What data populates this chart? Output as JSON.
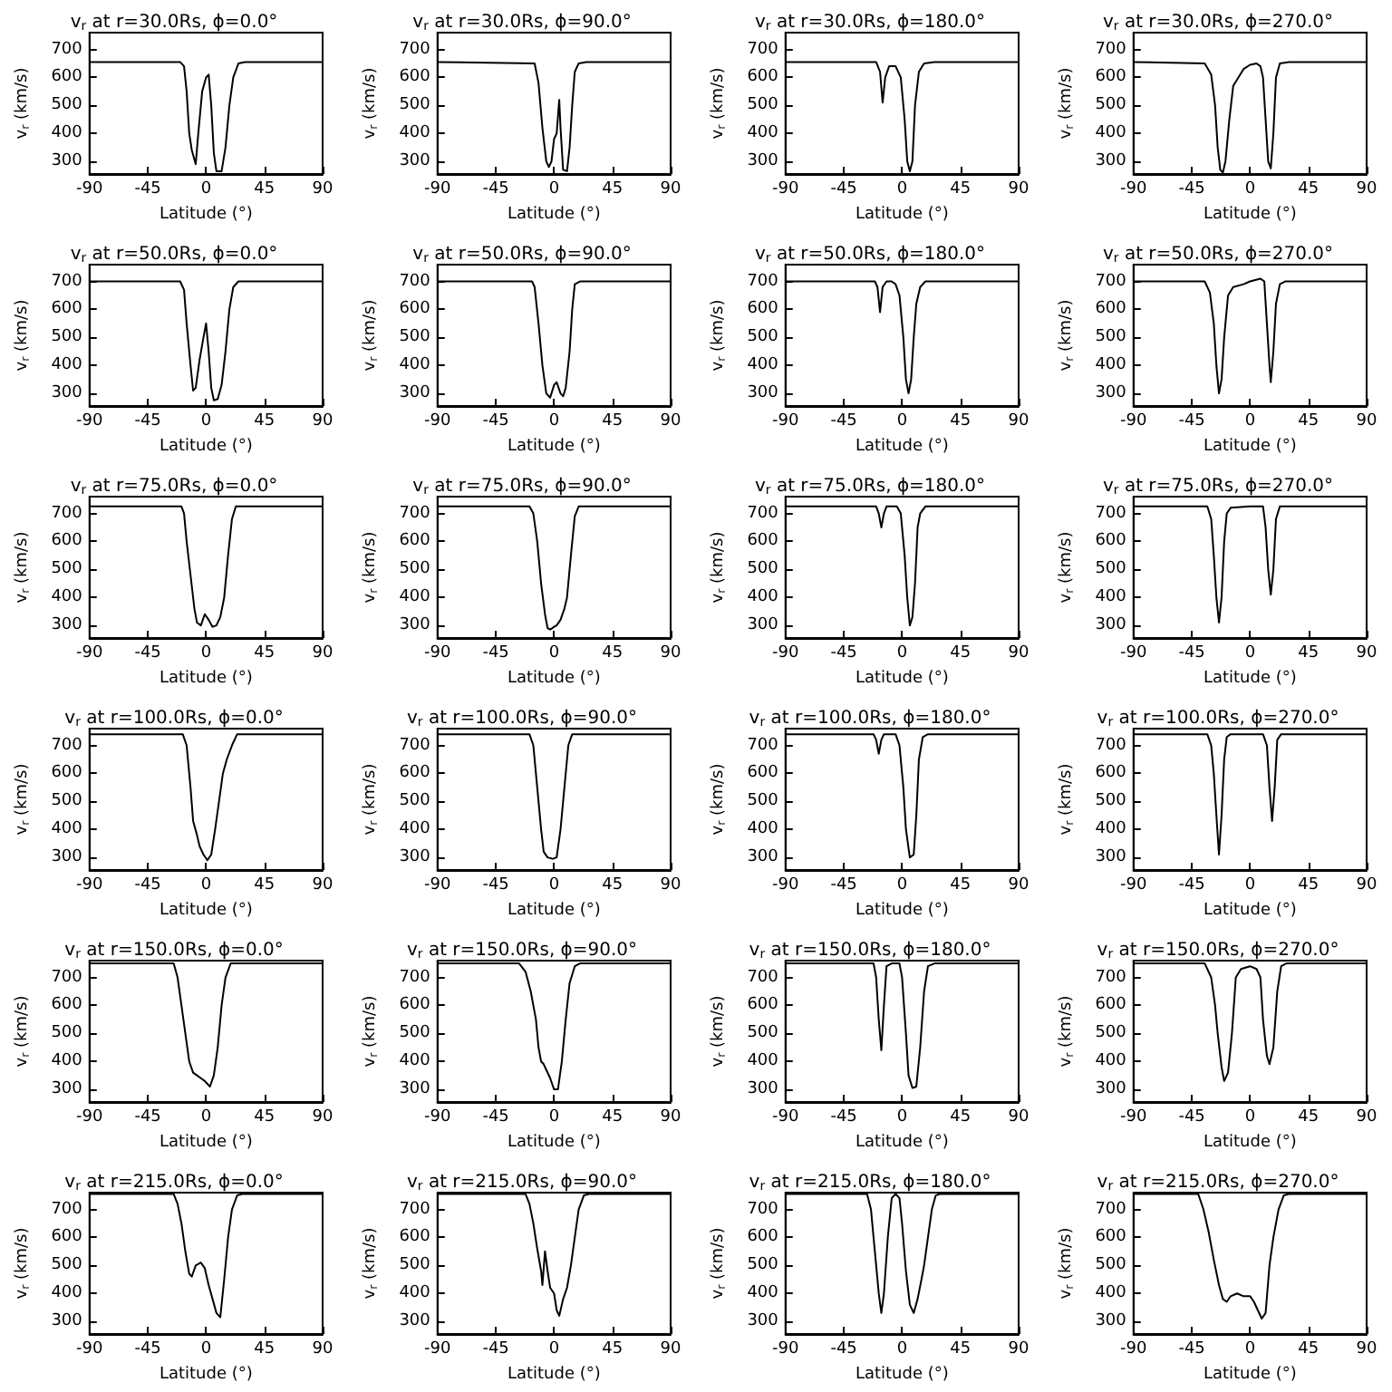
{
  "chart_data": [
    {
      "type": "line",
      "title": "v$_{r}$ at r=30.0Rs, ϕ=0.0°",
      "xlabel": "Latitude (°)",
      "ylabel": "v$_{r}$ (km/s)",
      "color": "#000000",
      "xlim": [
        -90,
        90
      ],
      "xticks": [
        -90,
        -45,
        0,
        45,
        90
      ],
      "ylim": [
        255,
        760
      ],
      "yticks": [
        300,
        400,
        500,
        600,
        700
      ],
      "x": [
        -90,
        -20,
        -17,
        -15,
        -13,
        -11,
        -8,
        -6,
        -3,
        0,
        2,
        4,
        6,
        8,
        12,
        15,
        18,
        21,
        25,
        30,
        90
      ],
      "values": [
        655,
        655,
        640,
        550,
        400,
        340,
        290,
        400,
        550,
        600,
        610,
        500,
        330,
        265,
        265,
        350,
        500,
        600,
        650,
        655,
        655
      ]
    },
    {
      "type": "line",
      "title": "v$_{r}$ at r=30.0Rs, ϕ=90.0°",
      "xlabel": "Latitude (°)",
      "ylabel": "v$_{r}$ (km/s)",
      "color": "#000000",
      "xlim": [
        -90,
        90
      ],
      "xticks": [
        -90,
        -45,
        0,
        45,
        90
      ],
      "ylim": [
        255,
        760
      ],
      "yticks": [
        300,
        400,
        500,
        600,
        700
      ],
      "x": [
        -90,
        -15,
        -12,
        -9,
        -6,
        -4,
        -2,
        0,
        2,
        4,
        5,
        7,
        10,
        12,
        14,
        16,
        19,
        25,
        90
      ],
      "values": [
        655,
        650,
        580,
        420,
        300,
        280,
        300,
        380,
        400,
        520,
        420,
        270,
        265,
        350,
        500,
        620,
        650,
        655,
        655
      ]
    },
    {
      "type": "line",
      "title": "v$_{r}$ at r=30.0Rs, ϕ=180.0°",
      "xlabel": "Latitude (°)",
      "ylabel": "v$_{r}$ (km/s)",
      "color": "#000000",
      "xlim": [
        -90,
        90
      ],
      "xticks": [
        -90,
        -45,
        0,
        45,
        90
      ],
      "ylim": [
        255,
        760
      ],
      "yticks": [
        300,
        400,
        500,
        600,
        700
      ],
      "x": [
        -90,
        -20,
        -17,
        -15,
        -13,
        -10,
        -5,
        -1,
        2,
        4,
        6,
        8,
        10,
        13,
        17,
        25,
        90
      ],
      "values": [
        655,
        655,
        620,
        510,
        600,
        640,
        640,
        600,
        450,
        300,
        265,
        300,
        500,
        620,
        650,
        655,
        655
      ]
    },
    {
      "type": "line",
      "title": "v$_{r}$ at r=30.0Rs, ϕ=270.0°",
      "xlabel": "Latitude (°)",
      "ylabel": "v$_{r}$ (km/s)",
      "color": "#000000",
      "xlim": [
        -90,
        90
      ],
      "xticks": [
        -90,
        -45,
        0,
        45,
        90
      ],
      "ylim": [
        255,
        760
      ],
      "yticks": [
        300,
        400,
        500,
        600,
        700
      ],
      "x": [
        -90,
        -35,
        -30,
        -27,
        -25,
        -23,
        -21,
        -19,
        -16,
        -13,
        -9,
        -5,
        0,
        5,
        8,
        10,
        12,
        14,
        16,
        18,
        20,
        23,
        30,
        90
      ],
      "values": [
        655,
        650,
        610,
        500,
        350,
        270,
        260,
        300,
        450,
        570,
        600,
        630,
        645,
        650,
        640,
        600,
        450,
        300,
        275,
        400,
        600,
        650,
        655,
        655
      ]
    },
    {
      "type": "line",
      "title": "v$_{r}$ at r=50.0Rs, ϕ=0.0°",
      "xlabel": "Latitude (°)",
      "ylabel": "v$_{r}$ (km/s)",
      "color": "#000000",
      "xlim": [
        -90,
        90
      ],
      "xticks": [
        -90,
        -45,
        0,
        45,
        90
      ],
      "ylim": [
        255,
        760
      ],
      "yticks": [
        300,
        400,
        500,
        600,
        700
      ],
      "x": [
        -90,
        -20,
        -17,
        -15,
        -12,
        -10,
        -8,
        -5,
        -2,
        0,
        2,
        4,
        6,
        9,
        12,
        15,
        18,
        21,
        25,
        90
      ],
      "values": [
        700,
        700,
        670,
        550,
        400,
        310,
        320,
        420,
        500,
        550,
        450,
        320,
        275,
        280,
        330,
        450,
        600,
        680,
        700,
        700
      ]
    },
    {
      "type": "line",
      "title": "v$_{r}$ at r=50.0Rs, ϕ=90.0°",
      "xlabel": "Latitude (°)",
      "ylabel": "v$_{r}$ (km/s)",
      "color": "#000000",
      "xlim": [
        -90,
        90
      ],
      "xticks": [
        -90,
        -45,
        0,
        45,
        90
      ],
      "ylim": [
        255,
        760
      ],
      "yticks": [
        300,
        400,
        500,
        600,
        700
      ],
      "x": [
        -90,
        -17,
        -15,
        -12,
        -9,
        -6,
        -3,
        0,
        2,
        5,
        7,
        9,
        12,
        14,
        16,
        20,
        90
      ],
      "values": [
        700,
        700,
        680,
        550,
        400,
        300,
        285,
        330,
        340,
        300,
        290,
        320,
        450,
        600,
        690,
        700,
        700
      ]
    },
    {
      "type": "line",
      "title": "v$_{r}$ at r=50.0Rs, ϕ=180.0°",
      "xlabel": "Latitude (°)",
      "ylabel": "v$_{r}$ (km/s)",
      "color": "#000000",
      "xlim": [
        -90,
        90
      ],
      "xticks": [
        -90,
        -45,
        0,
        45,
        90
      ],
      "ylim": [
        255,
        760
      ],
      "yticks": [
        300,
        400,
        500,
        600,
        700
      ],
      "x": [
        -90,
        -21,
        -19,
        -17,
        -15,
        -12,
        -8,
        -5,
        -2,
        1,
        3,
        5,
        7,
        9,
        11,
        14,
        18,
        90
      ],
      "values": [
        700,
        700,
        680,
        590,
        680,
        700,
        700,
        690,
        650,
        500,
        350,
        300,
        350,
        500,
        620,
        680,
        700,
        700
      ]
    },
    {
      "type": "line",
      "title": "v$_{r}$ at r=50.0Rs, ϕ=270.0°",
      "xlabel": "Latitude (°)",
      "ylabel": "v$_{r}$ (km/s)",
      "color": "#000000",
      "xlim": [
        -90,
        90
      ],
      "xticks": [
        -90,
        -45,
        0,
        45,
        90
      ],
      "ylim": [
        255,
        760
      ],
      "yticks": [
        300,
        400,
        500,
        600,
        700
      ],
      "x": [
        -90,
        -35,
        -31,
        -28,
        -26,
        -24,
        -22,
        -20,
        -17,
        -13,
        -5,
        0,
        8,
        11,
        13,
        15,
        16,
        18,
        20,
        23,
        27,
        90
      ],
      "values": [
        700,
        700,
        660,
        550,
        400,
        300,
        350,
        500,
        650,
        680,
        690,
        700,
        710,
        700,
        550,
        400,
        340,
        450,
        620,
        690,
        700,
        700
      ]
    },
    {
      "type": "line",
      "title": "v$_{r}$ at r=75.0Rs, ϕ=0.0°",
      "xlabel": "Latitude (°)",
      "ylabel": "v$_{r}$ (km/s)",
      "color": "#000000",
      "xlim": [
        -90,
        90
      ],
      "xticks": [
        -90,
        -45,
        0,
        45,
        90
      ],
      "ylim": [
        255,
        760
      ],
      "yticks": [
        300,
        400,
        500,
        600,
        700
      ],
      "x": [
        -90,
        -19,
        -17,
        -15,
        -12,
        -9,
        -7,
        -4,
        -1,
        2,
        5,
        8,
        11,
        14,
        17,
        20,
        23,
        90
      ],
      "values": [
        725,
        725,
        700,
        600,
        480,
        360,
        310,
        300,
        340,
        320,
        295,
        300,
        330,
        400,
        550,
        680,
        725,
        725
      ]
    },
    {
      "type": "line",
      "title": "v$_{r}$ at r=75.0Rs, ϕ=90.0°",
      "xlabel": "Latitude (°)",
      "ylabel": "v$_{r}$ (km/s)",
      "color": "#000000",
      "xlim": [
        -90,
        90
      ],
      "xticks": [
        -90,
        -45,
        0,
        45,
        90
      ],
      "ylim": [
        255,
        760
      ],
      "yticks": [
        300,
        400,
        500,
        600,
        700
      ],
      "x": [
        -90,
        -19,
        -16,
        -13,
        -10,
        -7,
        -5,
        -3,
        0,
        2,
        5,
        8,
        10,
        13,
        16,
        19,
        90
      ],
      "values": [
        725,
        725,
        700,
        600,
        450,
        340,
        290,
        285,
        295,
        300,
        320,
        360,
        400,
        550,
        690,
        725,
        725
      ]
    },
    {
      "type": "line",
      "title": "v$_{r}$ at r=75.0Rs, ϕ=180.0°",
      "xlabel": "Latitude (°)",
      "ylabel": "v$_{r}$ (km/s)",
      "color": "#000000",
      "xlim": [
        -90,
        90
      ],
      "xticks": [
        -90,
        -45,
        0,
        45,
        90
      ],
      "ylim": [
        255,
        760
      ],
      "yticks": [
        300,
        400,
        500,
        600,
        700
      ],
      "x": [
        -90,
        -20,
        -18,
        -16,
        -14,
        -12,
        -4,
        -1,
        2,
        4,
        6,
        8,
        10,
        12,
        14,
        18,
        90
      ],
      "values": [
        725,
        725,
        700,
        650,
        700,
        725,
        725,
        700,
        550,
        400,
        300,
        330,
        450,
        650,
        700,
        725,
        725
      ]
    },
    {
      "type": "line",
      "title": "v$_{r}$ at r=75.0Rs, ϕ=270.0°",
      "xlabel": "Latitude (°)",
      "ylabel": "v$_{r}$ (km/s)",
      "color": "#000000",
      "xlim": [
        -90,
        90
      ],
      "xticks": [
        -90,
        -45,
        0,
        45,
        90
      ],
      "ylim": [
        255,
        760
      ],
      "yticks": [
        300,
        400,
        500,
        600,
        700
      ],
      "x": [
        -90,
        -33,
        -30,
        -28,
        -26,
        -24,
        -22,
        -20,
        -18,
        -15,
        0,
        10,
        12,
        14,
        16,
        18,
        20,
        23,
        90
      ],
      "values": [
        725,
        725,
        680,
        550,
        400,
        310,
        400,
        600,
        700,
        720,
        725,
        725,
        650,
        500,
        410,
        500,
        680,
        725,
        725
      ]
    },
    {
      "type": "line",
      "title": "v$_{r}$ at r=100.0Rs, ϕ=0.0°",
      "xlabel": "Latitude (°)",
      "ylabel": "v$_{r}$ (km/s)",
      "color": "#000000",
      "xlim": [
        -90,
        90
      ],
      "xticks": [
        -90,
        -45,
        0,
        45,
        90
      ],
      "ylim": [
        255,
        760
      ],
      "yticks": [
        300,
        400,
        500,
        600,
        700
      ],
      "x": [
        -90,
        -18,
        -15,
        -12,
        -10,
        -7,
        -5,
        -2,
        1,
        4,
        7,
        10,
        13,
        16,
        20,
        24,
        90
      ],
      "values": [
        740,
        740,
        700,
        550,
        430,
        380,
        340,
        310,
        290,
        310,
        400,
        500,
        600,
        650,
        700,
        740,
        740
      ]
    },
    {
      "type": "line",
      "title": "v$_{r}$ at r=100.0Rs, ϕ=90.0°",
      "xlabel": "Latitude (°)",
      "ylabel": "v$_{r}$ (km/s)",
      "color": "#000000",
      "xlim": [
        -90,
        90
      ],
      "xticks": [
        -90,
        -45,
        0,
        45,
        90
      ],
      "ylim": [
        255,
        760
      ],
      "yticks": [
        300,
        400,
        500,
        600,
        700
      ],
      "x": [
        -90,
        -19,
        -16,
        -13,
        -10,
        -8,
        -5,
        -1,
        2,
        5,
        8,
        11,
        14,
        90
      ],
      "values": [
        740,
        740,
        700,
        550,
        400,
        320,
        300,
        295,
        300,
        400,
        550,
        700,
        740,
        740
      ]
    },
    {
      "type": "line",
      "title": "v$_{r}$ at r=100.0Rs, ϕ=180.0°",
      "xlabel": "Latitude (°)",
      "ylabel": "v$_{r}$ (km/s)",
      "color": "#000000",
      "xlim": [
        -90,
        90
      ],
      "xticks": [
        -90,
        -45,
        0,
        45,
        90
      ],
      "ylim": [
        255,
        760
      ],
      "yticks": [
        300,
        400,
        500,
        600,
        700
      ],
      "x": [
        -90,
        -22,
        -20,
        -18,
        -16,
        -14,
        -5,
        -2,
        1,
        3,
        6,
        9,
        11,
        13,
        16,
        20,
        90
      ],
      "values": [
        740,
        740,
        720,
        670,
        720,
        740,
        740,
        700,
        550,
        400,
        300,
        310,
        450,
        650,
        730,
        740,
        740
      ]
    },
    {
      "type": "line",
      "title": "v$_{r}$ at r=100.0Rs, ϕ=270.0°",
      "xlabel": "Latitude (°)",
      "ylabel": "v$_{r}$ (km/s)",
      "color": "#000000",
      "xlim": [
        -90,
        90
      ],
      "xticks": [
        -90,
        -45,
        0,
        45,
        90
      ],
      "ylim": [
        255,
        760
      ],
      "yticks": [
        300,
        400,
        500,
        600,
        700
      ],
      "x": [
        -90,
        -33,
        -30,
        -28,
        -26,
        -24,
        -22,
        -20,
        -18,
        -15,
        10,
        13,
        15,
        17,
        19,
        21,
        24,
        90
      ],
      "values": [
        740,
        740,
        700,
        600,
        450,
        310,
        450,
        650,
        730,
        740,
        740,
        700,
        550,
        430,
        550,
        720,
        740,
        740
      ]
    },
    {
      "type": "line",
      "title": "v$_{r}$ at r=150.0Rs, ϕ=0.0°",
      "xlabel": "Latitude (°)",
      "ylabel": "v$_{r}$ (km/s)",
      "color": "#000000",
      "xlim": [
        -90,
        90
      ],
      "xticks": [
        -90,
        -45,
        0,
        45,
        90
      ],
      "ylim": [
        255,
        760
      ],
      "yticks": [
        300,
        400,
        500,
        600,
        700
      ],
      "x": [
        -90,
        -25,
        -22,
        -19,
        -16,
        -13,
        -10,
        -7,
        -4,
        -1,
        3,
        6,
        9,
        12,
        15,
        19,
        90
      ],
      "values": [
        750,
        750,
        700,
        600,
        500,
        400,
        360,
        350,
        340,
        330,
        310,
        350,
        450,
        600,
        700,
        750,
        750
      ]
    },
    {
      "type": "line",
      "title": "v$_{r}$ at r=150.0Rs, ϕ=90.0°",
      "xlabel": "Latitude (°)",
      "ylabel": "v$_{r}$ (km/s)",
      "color": "#000000",
      "xlim": [
        -90,
        90
      ],
      "xticks": [
        -90,
        -45,
        0,
        45,
        90
      ],
      "ylim": [
        255,
        760
      ],
      "yticks": [
        300,
        400,
        500,
        600,
        700
      ],
      "x": [
        -90,
        -27,
        -22,
        -18,
        -14,
        -12,
        -10,
        -8,
        -6,
        -3,
        0,
        3,
        6,
        9,
        12,
        16,
        20,
        90
      ],
      "values": [
        750,
        750,
        720,
        650,
        550,
        450,
        400,
        390,
        370,
        340,
        300,
        300,
        400,
        550,
        680,
        740,
        750,
        750
      ]
    },
    {
      "type": "line",
      "title": "v$_{r}$ at r=150.0Rs, ϕ=180.0°",
      "xlabel": "Latitude (°)",
      "ylabel": "v$_{r}$ (km/s)",
      "color": "#000000",
      "xlim": [
        -90,
        90
      ],
      "xticks": [
        -90,
        -45,
        0,
        45,
        90
      ],
      "ylim": [
        255,
        760
      ],
      "yticks": [
        300,
        400,
        500,
        600,
        700
      ],
      "x": [
        -90,
        -22,
        -20,
        -18,
        -16,
        -14,
        -12,
        -8,
        -2,
        0,
        3,
        5,
        8,
        11,
        14,
        17,
        20,
        25,
        90
      ],
      "values": [
        750,
        750,
        700,
        550,
        440,
        600,
        740,
        750,
        750,
        700,
        500,
        350,
        305,
        310,
        450,
        650,
        740,
        750,
        750
      ]
    },
    {
      "type": "line",
      "title": "v$_{r}$ at r=150.0Rs, ϕ=270.0°",
      "xlabel": "Latitude (°)",
      "ylabel": "v$_{r}$ (km/s)",
      "color": "#000000",
      "xlim": [
        -90,
        90
      ],
      "xticks": [
        -90,
        -45,
        0,
        45,
        90
      ],
      "ylim": [
        255,
        760
      ],
      "yticks": [
        300,
        400,
        500,
        600,
        700
      ],
      "x": [
        -90,
        -35,
        -30,
        -27,
        -25,
        -22,
        -20,
        -17,
        -14,
        -11,
        -7,
        0,
        5,
        8,
        10,
        13,
        15,
        18,
        21,
        24,
        28,
        90
      ],
      "values": [
        750,
        750,
        700,
        600,
        500,
        380,
        330,
        360,
        500,
        700,
        730,
        740,
        730,
        700,
        550,
        420,
        390,
        450,
        650,
        740,
        750,
        750
      ]
    },
    {
      "type": "line",
      "title": "v$_{r}$ at r=215.0Rs, ϕ=0.0°",
      "xlabel": "Latitude (°)",
      "ylabel": "v$_{r}$ (km/s)",
      "color": "#000000",
      "xlim": [
        -90,
        90
      ],
      "xticks": [
        -90,
        -45,
        0,
        45,
        90
      ],
      "ylim": [
        255,
        760
      ],
      "yticks": [
        300,
        400,
        500,
        600,
        700
      ],
      "x": [
        -90,
        -25,
        -22,
        -19,
        -16,
        -13,
        -11,
        -8,
        -4,
        -1,
        2,
        5,
        8,
        11,
        14,
        17,
        20,
        24,
        28,
        90
      ],
      "values": [
        755,
        755,
        720,
        650,
        550,
        470,
        460,
        500,
        510,
        490,
        430,
        380,
        330,
        315,
        450,
        600,
        700,
        750,
        755,
        755
      ]
    },
    {
      "type": "line",
      "title": "v$_{r}$ at r=215.0Rs, ϕ=90.0°",
      "xlabel": "Latitude (°)",
      "ylabel": "v$_{r}$ (km/s)",
      "color": "#000000",
      "xlim": [
        -90,
        90
      ],
      "xticks": [
        -90,
        -45,
        0,
        45,
        90
      ],
      "ylim": [
        255,
        760
      ],
      "yticks": [
        300,
        400,
        500,
        600,
        700
      ],
      "x": [
        -90,
        -22,
        -19,
        -16,
        -13,
        -10,
        -9,
        -7,
        -5,
        -3,
        0,
        2,
        4,
        7,
        10,
        13,
        16,
        19,
        23,
        27,
        90
      ],
      "values": [
        755,
        755,
        720,
        650,
        560,
        480,
        430,
        550,
        480,
        420,
        400,
        340,
        320,
        380,
        420,
        500,
        600,
        700,
        750,
        755,
        755
      ]
    },
    {
      "type": "line",
      "title": "v$_{r}$ at r=215.0Rs, ϕ=180.0°",
      "xlabel": "Latitude (°)",
      "ylabel": "v$_{r}$ (km/s)",
      "color": "#000000",
      "xlim": [
        -90,
        90
      ],
      "xticks": [
        -90,
        -45,
        0,
        45,
        90
      ],
      "ylim": [
        255,
        760
      ],
      "yticks": [
        300,
        400,
        500,
        600,
        700
      ],
      "x": [
        -90,
        -27,
        -24,
        -21,
        -18,
        -16,
        -14,
        -11,
        -8,
        -5,
        -2,
        0,
        3,
        6,
        9,
        12,
        15,
        17,
        20,
        23,
        26,
        29,
        90
      ],
      "values": [
        755,
        755,
        700,
        550,
        400,
        330,
        400,
        600,
        740,
        755,
        740,
        650,
        480,
        360,
        330,
        380,
        450,
        500,
        600,
        700,
        750,
        755,
        755
      ]
    },
    {
      "type": "line",
      "title": "v$_{r}$ at r=215.0Rs, ϕ=270.0°",
      "xlabel": "Latitude (°)",
      "ylabel": "v$_{r}$ (km/s)",
      "color": "#000000",
      "xlim": [
        -90,
        90
      ],
      "xticks": [
        -90,
        -45,
        0,
        45,
        90
      ],
      "ylim": [
        255,
        760
      ],
      "yticks": [
        300,
        400,
        500,
        600,
        700
      ],
      "x": [
        -90,
        -40,
        -36,
        -32,
        -28,
        -24,
        -21,
        -18,
        -15,
        -10,
        -5,
        0,
        3,
        6,
        9,
        12,
        15,
        18,
        22,
        26,
        30,
        90
      ],
      "values": [
        755,
        755,
        700,
        620,
        520,
        430,
        380,
        370,
        390,
        400,
        390,
        390,
        370,
        340,
        310,
        330,
        500,
        600,
        700,
        750,
        755,
        755
      ]
    }
  ]
}
